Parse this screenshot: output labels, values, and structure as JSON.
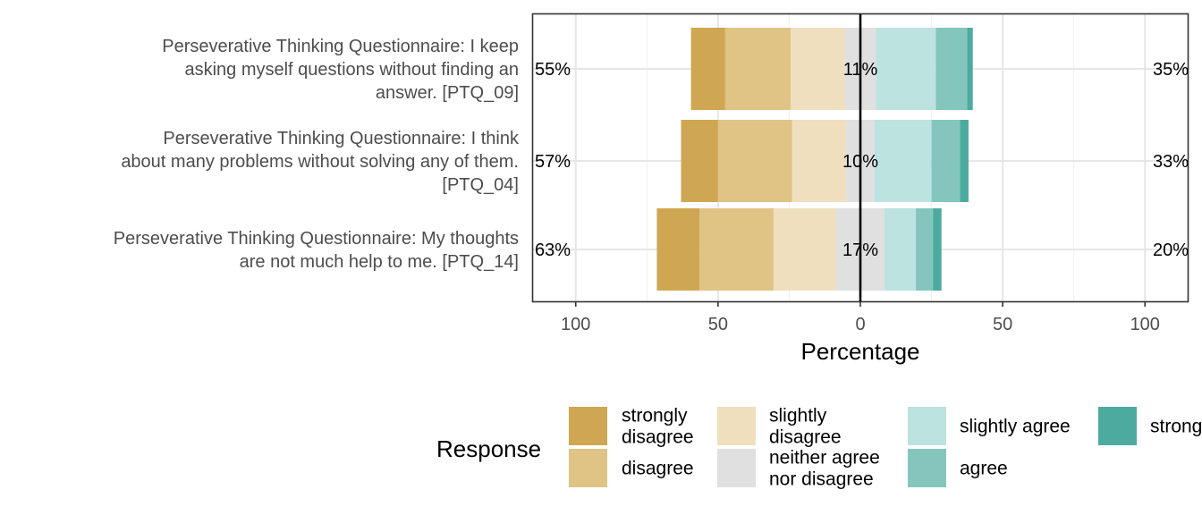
{
  "chart_data": {
    "type": "bar",
    "subtype": "diverging-likert",
    "orientation": "horizontal",
    "xlabel": "Percentage",
    "xlim": [
      -115,
      115
    ],
    "xticks": [
      {
        "value": -100,
        "label": "100"
      },
      {
        "value": -50,
        "label": "50"
      },
      {
        "value": 0,
        "label": "0"
      },
      {
        "value": 50,
        "label": "50"
      },
      {
        "value": 100,
        "label": "100"
      }
    ],
    "grid": true,
    "categories": [
      {
        "lines": [
          "Perseverative Thinking Questionnaire: I keep",
          "asking myself questions without finding an",
          "answer. [PTQ_09]"
        ],
        "low_label": "55%",
        "neutral_label": "11%",
        "high_label": "35%"
      },
      {
        "lines": [
          "Perseverative Thinking Questionnaire: I think",
          "about many problems without solving any of them.",
          "[PTQ_04]"
        ],
        "low_label": "57%",
        "neutral_label": "10%",
        "high_label": "33%"
      },
      {
        "lines": [
          "Perseverative Thinking Questionnaire: My thoughts",
          "are not much help to me. [PTQ_14]"
        ],
        "low_label": "63%",
        "neutral_label": "17%",
        "high_label": "20%"
      }
    ],
    "series": [
      {
        "name": "strongly disagree",
        "legend_lines": [
          "strongly",
          "disagree"
        ],
        "color": "#CFA752",
        "values": [
          12,
          13,
          15
        ]
      },
      {
        "name": "disagree",
        "legend_lines": [
          "disagree"
        ],
        "color": "#DFC486",
        "values": [
          23,
          26,
          26
        ]
      },
      {
        "name": "slightly disagree",
        "legend_lines": [
          "slightly",
          "disagree"
        ],
        "color": "#EFDFBF",
        "values": [
          19,
          19,
          22
        ]
      },
      {
        "name": "neither agree nor disagree",
        "legend_lines": [
          "neither agree",
          "nor disagree"
        ],
        "color": "#E0E0E0",
        "values": [
          11,
          10,
          17
        ]
      },
      {
        "name": "slightly agree",
        "legend_lines": [
          "slightly agree"
        ],
        "color": "#BCE3DF",
        "values": [
          21,
          20,
          11
        ]
      },
      {
        "name": "agree",
        "legend_lines": [
          "agree"
        ],
        "color": "#84C6BE",
        "values": [
          11,
          10,
          6
        ]
      },
      {
        "name": "strongly agree",
        "legend_lines": [
          "strong"
        ],
        "color": "#4DAA9E",
        "values": [
          2,
          3,
          3
        ]
      }
    ],
    "legend": {
      "title": "Response",
      "position": "bottom"
    }
  }
}
